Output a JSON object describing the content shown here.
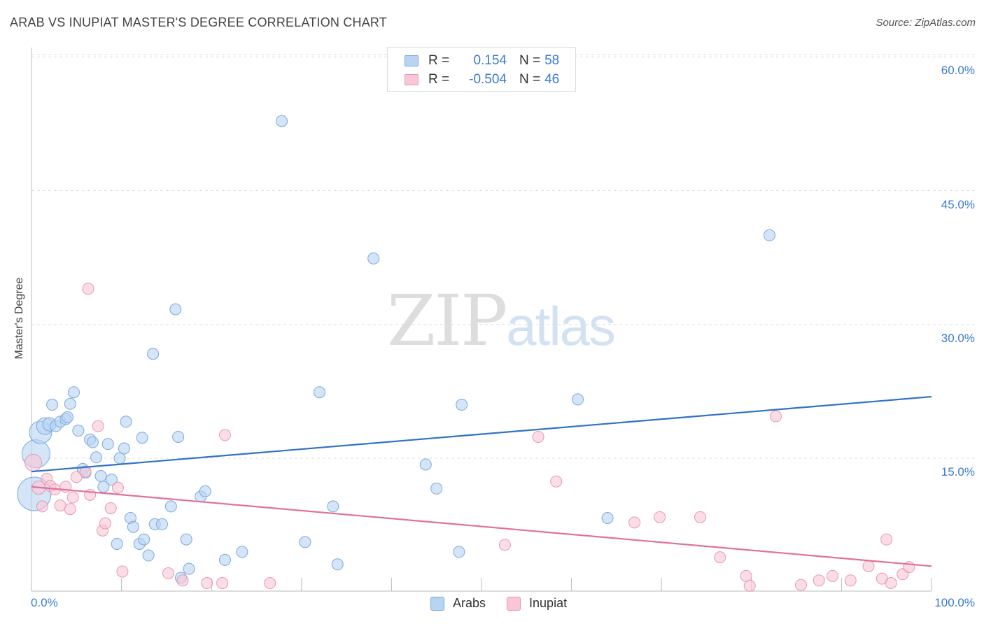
{
  "header": {
    "title": "ARAB VS INUPIAT MASTER'S DEGREE CORRELATION CHART",
    "source": "Source: ZipAtlas.com"
  },
  "watermark": {
    "zip": "ZIP",
    "atlas": "atlas"
  },
  "colors": {
    "arabs_fill": "#b8d4f3",
    "arabs_stroke": "#7aa8dc",
    "arabs_line": "#2f72c9",
    "inupiat_fill": "#f8c6d6",
    "inupiat_stroke": "#e897b3",
    "inupiat_line": "#e36f9b",
    "accent_text": "#3a7bd5",
    "grid": "#dddddd"
  },
  "legend": {
    "rows": [
      {
        "r_label": "R =",
        "r_value": "0.154",
        "n_label": "N =",
        "n_value": "58"
      },
      {
        "r_label": "R =",
        "r_value": "-0.504",
        "n_label": "N =",
        "n_value": "46"
      }
    ]
  },
  "bottom_legend": {
    "arabs": "Arabs",
    "inupiat": "Inupiat"
  },
  "chart_data": {
    "type": "scatter",
    "title": "ARAB VS INUPIAT MASTER'S DEGREE CORRELATION CHART",
    "xlabel": "",
    "ylabel": "Master's Degree",
    "xlim": [
      0,
      100
    ],
    "ylim": [
      0,
      63
    ],
    "x_tick_labels": [
      "0.0%",
      "100.0%"
    ],
    "y_ticks": [
      {
        "value": 15,
        "label": "15.0%"
      },
      {
        "value": 30,
        "label": "30.0%"
      },
      {
        "value": 45,
        "label": "45.0%"
      },
      {
        "value": 60,
        "label": "60.0%"
      }
    ],
    "grid": "horizontal dashed",
    "legend_position": "top-center",
    "series": [
      {
        "name": "Arabs",
        "r": 0.154,
        "n": 58,
        "trend": {
          "x": [
            0,
            100
          ],
          "y": [
            13.5,
            21.9
          ]
        },
        "points": [
          [
            0.3,
            11.0,
            3
          ],
          [
            0.5,
            15.5,
            2.5
          ],
          [
            1.0,
            17.9,
            2
          ],
          [
            1.5,
            18.6,
            1.5
          ],
          [
            2.0,
            18.8,
            1.2
          ],
          [
            2.3,
            21.0,
            1
          ],
          [
            2.7,
            18.6,
            1
          ],
          [
            3.2,
            19.1,
            1
          ],
          [
            3.8,
            19.4,
            1
          ],
          [
            4.0,
            19.6,
            1
          ],
          [
            4.3,
            21.1,
            1
          ],
          [
            4.7,
            22.4,
            1
          ],
          [
            5.2,
            18.1,
            1
          ],
          [
            5.7,
            13.8,
            1
          ],
          [
            6.0,
            13.4,
            1
          ],
          [
            6.5,
            17.1,
            1
          ],
          [
            6.8,
            16.8,
            1
          ],
          [
            7.2,
            15.1,
            1
          ],
          [
            7.7,
            13.0,
            1
          ],
          [
            8.0,
            11.8,
            1
          ],
          [
            8.5,
            16.6,
            1
          ],
          [
            8.9,
            12.6,
            1
          ],
          [
            9.5,
            5.4,
            1
          ],
          [
            9.8,
            15.0,
            1
          ],
          [
            10.3,
            16.1,
            1
          ],
          [
            10.5,
            19.1,
            1
          ],
          [
            11.0,
            8.3,
            1
          ],
          [
            11.3,
            7.3,
            1
          ],
          [
            12.0,
            5.4,
            1
          ],
          [
            12.3,
            17.3,
            1
          ],
          [
            12.5,
            5.9,
            1
          ],
          [
            13.0,
            4.1,
            1
          ],
          [
            13.5,
            26.7,
            1
          ],
          [
            13.7,
            7.6,
            1
          ],
          [
            14.5,
            7.6,
            1
          ],
          [
            15.5,
            9.6,
            1
          ],
          [
            16.0,
            31.7,
            1
          ],
          [
            16.3,
            17.4,
            1
          ],
          [
            16.6,
            1.6,
            1
          ],
          [
            17.2,
            5.9,
            1
          ],
          [
            17.5,
            2.6,
            1
          ],
          [
            18.8,
            10.7,
            1
          ],
          [
            19.3,
            11.3,
            1
          ],
          [
            21.5,
            3.6,
            1
          ],
          [
            23.4,
            4.5,
            1
          ],
          [
            27.8,
            52.8,
            1
          ],
          [
            30.4,
            5.6,
            1
          ],
          [
            32.0,
            22.4,
            1
          ],
          [
            33.5,
            9.6,
            1
          ],
          [
            34.0,
            3.1,
            1
          ],
          [
            38.0,
            37.4,
            1
          ],
          [
            43.8,
            14.3,
            1
          ],
          [
            45.0,
            11.6,
            1
          ],
          [
            47.5,
            4.5,
            1
          ],
          [
            47.8,
            21.0,
            1
          ],
          [
            60.7,
            21.6,
            1
          ],
          [
            64.0,
            8.3,
            1
          ],
          [
            82.0,
            40.0,
            1
          ]
        ]
      },
      {
        "name": "Inupiat",
        "r": -0.504,
        "n": 46,
        "trend": {
          "x": [
            0,
            100
          ],
          "y": [
            11.8,
            2.9
          ]
        },
        "points": [
          [
            0.2,
            14.5,
            1.5
          ],
          [
            0.8,
            11.7,
            1.2
          ],
          [
            1.2,
            9.6,
            1
          ],
          [
            1.7,
            12.7,
            1
          ],
          [
            2.1,
            11.9,
            1
          ],
          [
            2.6,
            11.5,
            1
          ],
          [
            3.2,
            9.7,
            1
          ],
          [
            3.8,
            11.8,
            1
          ],
          [
            4.3,
            9.3,
            1
          ],
          [
            4.6,
            10.6,
            1
          ],
          [
            5.0,
            12.9,
            1
          ],
          [
            6.0,
            13.5,
            1
          ],
          [
            6.3,
            34.0,
            1
          ],
          [
            6.5,
            10.9,
            1
          ],
          [
            7.4,
            18.6,
            1
          ],
          [
            7.9,
            6.9,
            1
          ],
          [
            8.2,
            7.7,
            1
          ],
          [
            8.8,
            9.4,
            1
          ],
          [
            9.6,
            11.7,
            1
          ],
          [
            10.1,
            2.3,
            1
          ],
          [
            15.2,
            2.1,
            1
          ],
          [
            16.8,
            1.3,
            1
          ],
          [
            19.5,
            1.0,
            1
          ],
          [
            21.2,
            1.0,
            1
          ],
          [
            21.5,
            17.6,
            1
          ],
          [
            26.5,
            1.0,
            1
          ],
          [
            52.6,
            5.3,
            1
          ],
          [
            56.3,
            17.4,
            1
          ],
          [
            58.3,
            12.4,
            1
          ],
          [
            67.0,
            7.8,
            1
          ],
          [
            69.8,
            8.4,
            1
          ],
          [
            74.3,
            8.4,
            1
          ],
          [
            76.5,
            3.9,
            1
          ],
          [
            79.4,
            1.8,
            1
          ],
          [
            79.8,
            0.7,
            1
          ],
          [
            82.7,
            19.7,
            1
          ],
          [
            85.5,
            0.8,
            1
          ],
          [
            87.5,
            1.3,
            1
          ],
          [
            89.0,
            1.8,
            1
          ],
          [
            91.0,
            1.3,
            1
          ],
          [
            93.0,
            2.9,
            1
          ],
          [
            94.5,
            1.5,
            1
          ],
          [
            95.0,
            5.9,
            1
          ],
          [
            95.5,
            1.0,
            1
          ],
          [
            96.8,
            2.0,
            1
          ],
          [
            97.5,
            2.8,
            1
          ]
        ]
      }
    ]
  }
}
